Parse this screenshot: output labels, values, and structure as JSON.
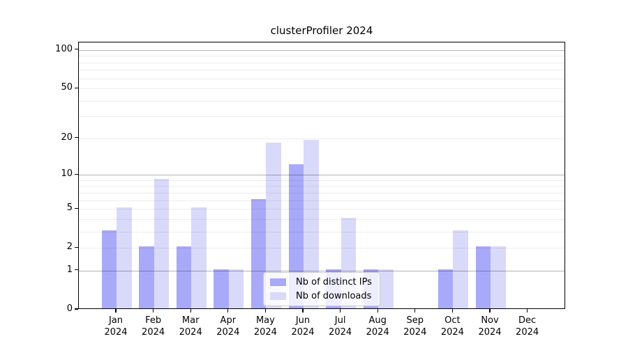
{
  "chart_data": {
    "type": "bar",
    "title": "clusterProfiler 2024",
    "categories": [
      "Jan",
      "Feb",
      "Mar",
      "Apr",
      "May",
      "Jun",
      "Jul",
      "Aug",
      "Sep",
      "Oct",
      "Nov",
      "Dec"
    ],
    "year_label": "2024",
    "series": [
      {
        "name": "Nb of distinct IPs",
        "color": "#a9a9fa",
        "values": [
          3,
          2,
          2,
          1,
          6,
          12,
          1,
          1,
          0,
          1,
          2,
          0
        ]
      },
      {
        "name": "Nb of downloads",
        "color": "#d9d9fa",
        "values": [
          5,
          9,
          5,
          1,
          18,
          19,
          4,
          1,
          0,
          3,
          2,
          0
        ]
      }
    ],
    "xlabel": "",
    "ylabel": "",
    "yscale": "log1p",
    "ylim": [
      0,
      115
    ],
    "ytick_labels": [
      0,
      1,
      2,
      5,
      10,
      20,
      50,
      100
    ],
    "major_gridlines": [
      1,
      10,
      100
    ],
    "minor_gridlines": [
      2,
      3,
      4,
      5,
      6,
      7,
      8,
      9,
      20,
      30,
      40,
      50,
      60,
      70,
      80,
      90
    ],
    "grid": true,
    "grid_major_color": "#b3b3b3",
    "grid_minor_color": "#ededed",
    "legend_position": "lower center"
  }
}
